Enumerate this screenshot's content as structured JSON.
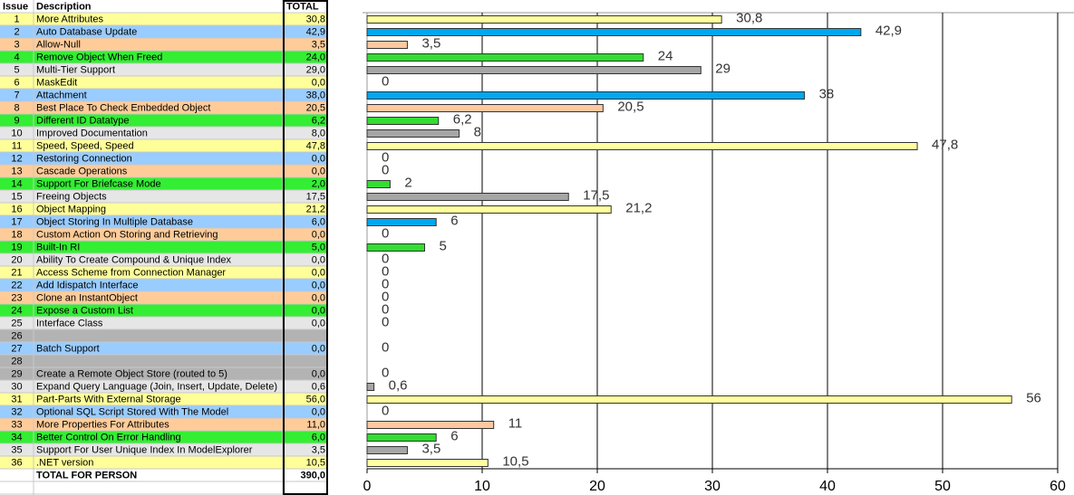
{
  "table": {
    "header": {
      "issue": "Issue",
      "description": "Description",
      "total": "TOTAL"
    },
    "rows": [
      {
        "issue": "1",
        "description": "More Attributes",
        "total": "30,8",
        "color": "#ffff99"
      },
      {
        "issue": "2",
        "description": "Auto Database Update",
        "total": "42,9",
        "color": "#99ccff"
      },
      {
        "issue": "3",
        "description": "Allow-Null",
        "total": "3,5",
        "color": "#ffcc99"
      },
      {
        "issue": "4",
        "description": "Remove Object When Freed",
        "total": "24,0",
        "color": "#33ee33"
      },
      {
        "issue": "5",
        "description": "Multi-Tier Support",
        "total": "29,0",
        "color": "#e6e6e6"
      },
      {
        "issue": "6",
        "description": "MaskEdit",
        "total": "0,0",
        "color": "#ffff99"
      },
      {
        "issue": "7",
        "description": "Attachment",
        "total": "38,0",
        "color": "#99ccff"
      },
      {
        "issue": "8",
        "description": "Best Place To Check Embedded Object",
        "total": "20,5",
        "color": "#ffcc99"
      },
      {
        "issue": "9",
        "description": "Different ID Datatype",
        "total": "6,2",
        "color": "#33ee33"
      },
      {
        "issue": "10",
        "description": "Improved Documentation",
        "total": "8,0",
        "color": "#e6e6e6"
      },
      {
        "issue": "11",
        "description": "Speed, Speed, Speed",
        "total": "47,8",
        "color": "#ffff99"
      },
      {
        "issue": "12",
        "description": "Restoring Connection",
        "total": "0,0",
        "color": "#99ccff"
      },
      {
        "issue": "13",
        "description": "Cascade Operations",
        "total": "0,0",
        "color": "#ffcc99"
      },
      {
        "issue": "14",
        "description": "Support For Briefcase Mode",
        "total": "2,0",
        "color": "#33ee33"
      },
      {
        "issue": "15",
        "description": "Freeing Objects",
        "total": "17,5",
        "color": "#e6e6e6"
      },
      {
        "issue": "16",
        "description": "Object Mapping",
        "total": "21,2",
        "color": "#ffff99"
      },
      {
        "issue": "17",
        "description": "Object Storing In Multiple Database",
        "total": "6,0",
        "color": "#99ccff"
      },
      {
        "issue": "18",
        "description": "Custom Action On Storing and Retrieving",
        "total": "0,0",
        "color": "#ffcc99"
      },
      {
        "issue": "19",
        "description": "Built-In RI",
        "total": "5,0",
        "color": "#33ee33"
      },
      {
        "issue": "20",
        "description": "Ability To Create Compound & Unique Index",
        "total": "0,0",
        "color": "#e6e6e6"
      },
      {
        "issue": "21",
        "description": "Access Scheme from Connection Manager",
        "total": "0,0",
        "color": "#ffff99"
      },
      {
        "issue": "22",
        "description": "Add Idispatch Interface",
        "total": "0,0",
        "color": "#99ccff"
      },
      {
        "issue": "23",
        "description": "Clone an InstantObject",
        "total": "0,0",
        "color": "#ffcc99"
      },
      {
        "issue": "24",
        "description": "Expose a Custom List",
        "total": "0,0",
        "color": "#33ee33"
      },
      {
        "issue": "25",
        "description": "Interface Class",
        "total": "0,0",
        "color": "#e6e6e6"
      },
      {
        "issue": "26",
        "color": "#b3b3b3"
      },
      {
        "issue": "27",
        "description": "Batch Support",
        "total": "0,0",
        "color": "#99ccff"
      },
      {
        "issue": "28",
        "color": "#b3b3b3"
      },
      {
        "issue": "29",
        "description": "Create a Remote Object Store (routed to 5)",
        "total": "0,0",
        "color": "#b3b3b3"
      },
      {
        "issue": "30",
        "description": "Expand Query Language (Join, Insert, Update, Delete)",
        "total": "0,6",
        "color": "#e6e6e6"
      },
      {
        "issue": "31",
        "description": "Part-Parts With External Storage",
        "total": "56,0",
        "color": "#ffff99"
      },
      {
        "issue": "32",
        "description": "Optional SQL Script Stored With The Model",
        "total": "0,0",
        "color": "#99ccff"
      },
      {
        "issue": "33",
        "description": "More Properties For Attributes",
        "total": "11,0",
        "color": "#ffcc99"
      },
      {
        "issue": "34",
        "description": "Better Control On Error Handling",
        "total": "6,0",
        "color": "#33ee33"
      },
      {
        "issue": "35",
        "description": "Support For User Unique Index In ModelExplorer",
        "total": "3,5",
        "color": "#e6e6e6"
      },
      {
        "issue": "36",
        "description": ".NET version",
        "total": "10,5",
        "color": "#ffff99"
      },
      {
        "description": "TOTAL FOR PERSON",
        "total": "390,0",
        "color": "#ffffff"
      }
    ]
  },
  "chart_data": {
    "type": "bar",
    "orientation": "horizontal",
    "values": [
      30.8,
      42.9,
      3.5,
      24,
      29,
      0,
      38,
      20.5,
      6.2,
      8,
      47.8,
      0,
      0,
      2,
      17.5,
      21.2,
      6,
      0,
      5,
      0,
      0,
      0,
      0,
      0,
      0,
      null,
      0,
      null,
      0,
      0.6,
      56,
      0,
      11,
      6,
      3.5,
      10.5
    ],
    "value_labels": [
      "30,8",
      "42,9",
      "3,5",
      "24",
      "29",
      "0",
      "38",
      "20,5",
      "6,2",
      "8",
      "47,8",
      "0",
      "0",
      "2",
      "17,5",
      "21,2",
      "6",
      "0",
      "5",
      "0",
      "0",
      "0",
      "0",
      "0",
      "0",
      null,
      "0",
      null,
      "0",
      "0,6",
      "56",
      "0",
      "11",
      "6",
      "3,5",
      "10,5"
    ],
    "colors": [
      "#ffffa0",
      "#00a8f0",
      "#ffc8a0",
      "#33dd33",
      "#a6a6a6",
      "#ffffa0",
      "#00a8f0",
      "#ffc8a0",
      "#33dd33",
      "#a6a6a6",
      "#ffffa0",
      "#00a8f0",
      "#ffc8a0",
      "#33dd33",
      "#a6a6a6",
      "#ffffa0",
      "#00a8f0",
      "#ffc8a0",
      "#33dd33",
      "#a6a6a6",
      "#ffffa0",
      "#00a8f0",
      "#ffc8a0",
      "#33dd33",
      "#a6a6a6",
      null,
      "#00a8f0",
      null,
      "#a6a6a6",
      "#a6a6a6",
      "#ffffa0",
      "#00a8f0",
      "#ffc8a0",
      "#33dd33",
      "#a6a6a6",
      "#ffffa0"
    ],
    "xlim": [
      0,
      60
    ],
    "xticks": [
      0,
      10,
      20,
      30,
      40,
      50,
      60
    ],
    "grid": true
  }
}
